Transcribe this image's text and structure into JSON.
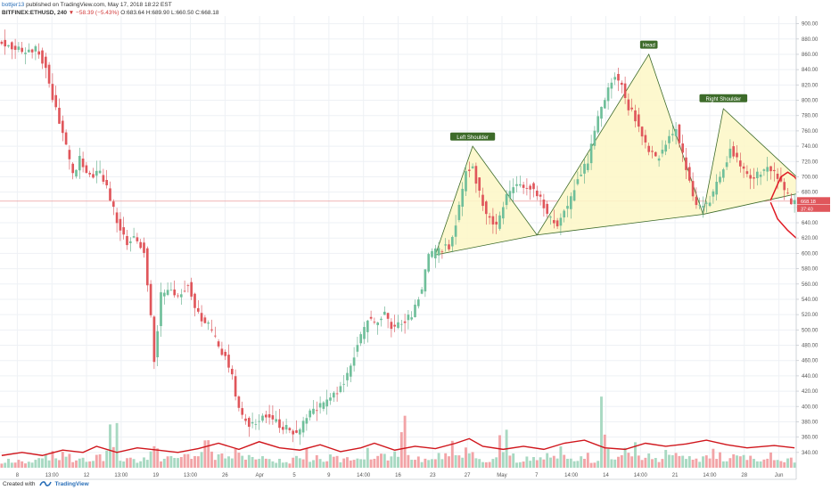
{
  "header": {
    "author": "bottjer13",
    "published": "published on TradingView.com, May 17, 2018 18:22 EST",
    "symbol": "BITFINEX:ETHUSD, 240",
    "change": "−58.39 (−5.43%)",
    "ohlc": "O:683.64 H:689.90 L:660.50 C:668.18"
  },
  "footer": {
    "created_with": "Created with",
    "brand": "TradingView"
  },
  "colors": {
    "up": "#6fbf9a",
    "down": "#e0565b",
    "wick_up": "#5aa985",
    "wick_down": "#d74a50",
    "pattern_fill": "#fdf7c6",
    "pattern_stroke": "#3d6b2a",
    "annotation_bg": "#3d6b2a",
    "drawing": "#e01b24",
    "ma": "#d0161c",
    "price_line": "#e88a8a"
  },
  "chart_data": {
    "type": "candlestick",
    "symbol": "BITFINEX:ETHUSD",
    "interval": "240",
    "ylim": [
      320,
      910
    ],
    "y_ticks": [
      340,
      360,
      380,
      400,
      420,
      440,
      460,
      480,
      500,
      520,
      540,
      560,
      580,
      600,
      620,
      640,
      660,
      680,
      700,
      720,
      740,
      760,
      780,
      800,
      820,
      840,
      860,
      880,
      900
    ],
    "x_ticks": [
      "8",
      "13:00",
      "12",
      "13:00",
      "19",
      "13:00",
      "26",
      "Apr",
      "5",
      "9",
      "14:00",
      "16",
      "23",
      "27",
      "May",
      "7",
      "14:00",
      "14",
      "14:00",
      "21",
      "14:00",
      "28",
      "Jun"
    ],
    "last_price": "668.18",
    "countdown": "37:40",
    "price_path": [
      [
        0,
        880
      ],
      [
        3,
        872
      ],
      [
        6,
        870
      ],
      [
        8,
        858
      ],
      [
        11,
        868
      ],
      [
        14,
        845
      ],
      [
        16,
        802
      ],
      [
        19,
        760
      ],
      [
        22,
        700
      ],
      [
        24,
        725
      ],
      [
        27,
        700
      ],
      [
        30,
        705
      ],
      [
        32,
        688
      ],
      [
        35,
        640
      ],
      [
        38,
        615
      ],
      [
        40,
        625
      ],
      [
        43,
        605
      ],
      [
        45,
        520
      ],
      [
        46,
        460
      ],
      [
        48,
        545
      ],
      [
        50,
        555
      ],
      [
        53,
        540
      ],
      [
        56,
        560
      ],
      [
        59,
        520
      ],
      [
        62,
        505
      ],
      [
        65,
        478
      ],
      [
        67,
        465
      ],
      [
        69,
        440
      ],
      [
        71,
        395
      ],
      [
        74,
        375
      ],
      [
        77,
        385
      ],
      [
        80,
        390
      ],
      [
        83,
        375
      ],
      [
        86,
        370
      ],
      [
        88,
        362
      ],
      [
        90,
        380
      ],
      [
        93,
        395
      ],
      [
        96,
        405
      ],
      [
        100,
        420
      ],
      [
        103,
        440
      ],
      [
        106,
        480
      ],
      [
        109,
        512
      ],
      [
        111,
        508
      ],
      [
        114,
        525
      ],
      [
        116,
        505
      ],
      [
        119,
        510
      ],
      [
        122,
        520
      ],
      [
        125,
        555
      ],
      [
        127,
        595
      ],
      [
        130,
        605
      ],
      [
        133,
        608
      ],
      [
        135,
        640
      ],
      [
        138,
        705
      ],
      [
        140,
        710
      ],
      [
        142,
        680
      ],
      [
        144,
        650
      ],
      [
        147,
        635
      ],
      [
        149,
        665
      ],
      [
        151,
        680
      ],
      [
        154,
        690
      ],
      [
        157,
        688
      ],
      [
        160,
        670
      ],
      [
        162,
        650
      ],
      [
        165,
        640
      ],
      [
        168,
        660
      ],
      [
        171,
        700
      ],
      [
        174,
        720
      ],
      [
        176,
        760
      ],
      [
        178,
        790
      ],
      [
        180,
        815
      ],
      [
        182,
        835
      ],
      [
        184,
        820
      ],
      [
        186,
        790
      ],
      [
        189,
        770
      ],
      [
        191,
        740
      ],
      [
        194,
        722
      ],
      [
        197,
        742
      ],
      [
        200,
        765
      ],
      [
        202,
        728
      ],
      [
        204,
        695
      ],
      [
        206,
        660
      ],
      [
        208,
        662
      ],
      [
        210,
        670
      ],
      [
        213,
        698
      ],
      [
        216,
        735
      ],
      [
        219,
        715
      ],
      [
        222,
        700
      ],
      [
        225,
        706
      ],
      [
        227,
        715
      ],
      [
        230,
        700
      ],
      [
        232,
        680
      ],
      [
        234,
        668
      ]
    ],
    "volume_profile": [
      8,
      10,
      7,
      9,
      12,
      11,
      14,
      16,
      12,
      10,
      9,
      13,
      15,
      40,
      12,
      10,
      9,
      14,
      18,
      12,
      11,
      10,
      15,
      13,
      24,
      14,
      12,
      11,
      16,
      13,
      10,
      12,
      15,
      11,
      9,
      13,
      17,
      12,
      10,
      14,
      11,
      9,
      12,
      13,
      18,
      15,
      12,
      20,
      46,
      14,
      12,
      11,
      16,
      13,
      28,
      20,
      14,
      12,
      10,
      11,
      34,
      13,
      12,
      10,
      11,
      15,
      12,
      21,
      13,
      10,
      14,
      12,
      60,
      18,
      15,
      20,
      26,
      14,
      12,
      11,
      25,
      13,
      10,
      12,
      14,
      18,
      13,
      11,
      16,
      12,
      10,
      9,
      13,
      11,
      8,
      10
    ],
    "ma_path": [
      [
        0,
        336
      ],
      [
        6,
        340
      ],
      [
        12,
        336
      ],
      [
        18,
        343
      ],
      [
        24,
        340
      ],
      [
        28,
        348
      ],
      [
        34,
        340
      ],
      [
        40,
        346
      ],
      [
        46,
        343
      ],
      [
        52,
        340
      ],
      [
        58,
        345
      ],
      [
        64,
        352
      ],
      [
        70,
        344
      ],
      [
        76,
        354
      ],
      [
        82,
        346
      ],
      [
        88,
        343
      ],
      [
        94,
        350
      ],
      [
        100,
        341
      ],
      [
        106,
        346
      ],
      [
        110,
        352
      ],
      [
        116,
        343
      ],
      [
        122,
        348
      ],
      [
        128,
        345
      ],
      [
        134,
        352
      ],
      [
        138,
        358
      ],
      [
        142,
        348
      ],
      [
        148,
        344
      ],
      [
        154,
        348
      ],
      [
        160,
        344
      ],
      [
        166,
        352
      ],
      [
        172,
        356
      ],
      [
        178,
        346
      ],
      [
        184,
        344
      ],
      [
        190,
        352
      ],
      [
        196,
        348
      ],
      [
        202,
        351
      ],
      [
        208,
        356
      ],
      [
        214,
        350
      ],
      [
        220,
        346
      ],
      [
        228,
        349
      ],
      [
        234,
        346
      ]
    ],
    "pattern": {
      "left_shoulder": [
        [
          128,
          598
        ],
        [
          139,
          740
        ],
        [
          158,
          624
        ]
      ],
      "head": [
        [
          158,
          624
        ],
        [
          191,
          860
        ],
        [
          207,
          651
        ]
      ],
      "right_shoulder": [
        [
          207,
          651
        ],
        [
          213,
          789
        ],
        [
          239,
          682
        ]
      ]
    },
    "annotations": [
      {
        "label": "Left Shoulder",
        "x": 139,
        "y": 752
      },
      {
        "label": "Head",
        "x": 191,
        "y": 872
      },
      {
        "label": "Right Shoulder",
        "x": 213,
        "y": 802
      }
    ],
    "projections": [
      [
        [
          227,
          670
        ],
        [
          230,
          700
        ],
        [
          232,
          706
        ],
        [
          234,
          700
        ],
        [
          236,
          688
        ],
        [
          238,
          668
        ],
        [
          241,
          638
        ],
        [
          245,
          590
        ],
        [
          248,
          550
        ],
        [
          250,
          515
        ],
        [
          252,
          513
        ]
      ],
      [
        [
          227,
          666
        ],
        [
          229,
          645
        ],
        [
          232,
          630
        ],
        [
          235,
          618
        ],
        [
          238,
          602
        ],
        [
          242,
          570
        ],
        [
          246,
          545
        ],
        [
          250,
          528
        ]
      ]
    ]
  }
}
